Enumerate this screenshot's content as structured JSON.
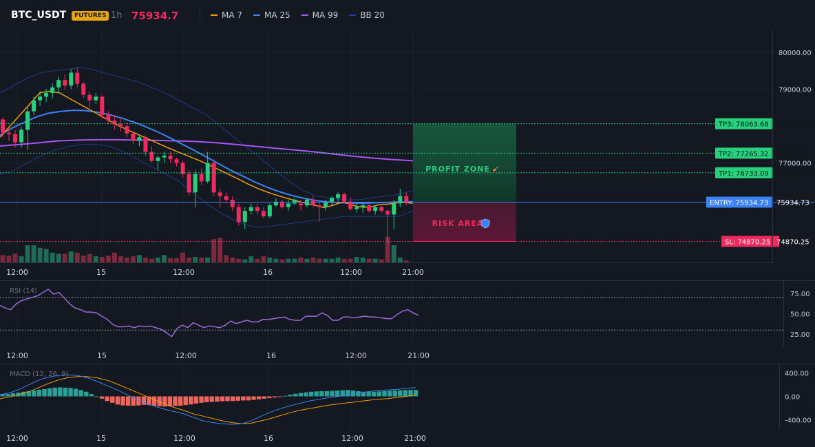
{
  "header": {
    "symbol": "BTC_USDT",
    "badge": "FUTURES",
    "interval": "1h",
    "price": "75934.7",
    "indicators": [
      {
        "label": "MA 7",
        "color": "#f59e0b"
      },
      {
        "label": "MA 25",
        "color": "#3b82f6"
      },
      {
        "label": "MA 99",
        "color": "#a855f7"
      },
      {
        "label": "BB 20",
        "color": "#1e40af"
      }
    ]
  },
  "colors": {
    "up": "#26d07c",
    "down": "#f0295e",
    "background": "#141821"
  },
  "chart_data": [
    {
      "type": "candlestick",
      "title": "BTC_USDT",
      "x_tick_labels": [
        "12:00",
        "15",
        "12:00",
        "16",
        "12:00",
        "21:00"
      ],
      "y_ticks": [
        80000,
        79000,
        77000
      ],
      "y_tick_labels": [
        "80000.00",
        "79000.00",
        "77000.00"
      ],
      "ylim": [
        74300,
        80600
      ],
      "candles_ohlc": [
        [
          78180,
          78240,
          77700,
          77820
        ],
        [
          77820,
          77950,
          77600,
          77780
        ],
        [
          77780,
          77900,
          77420,
          77560
        ],
        [
          77560,
          77980,
          77420,
          77900
        ],
        [
          77900,
          78500,
          77350,
          78400
        ],
        [
          78400,
          78800,
          78300,
          78700
        ],
        [
          78700,
          78950,
          78550,
          78800
        ],
        [
          78800,
          79000,
          78650,
          78900
        ],
        [
          78900,
          79150,
          78750,
          79050
        ],
        [
          79050,
          79350,
          78900,
          79250
        ],
        [
          79250,
          79400,
          79000,
          79100
        ],
        [
          79100,
          79550,
          79000,
          79450
        ],
        [
          79450,
          79600,
          79050,
          79150
        ],
        [
          79150,
          79200,
          78750,
          78850
        ],
        [
          78850,
          78950,
          78500,
          78700
        ],
        [
          78700,
          78900,
          78600,
          78800
        ],
        [
          78800,
          78850,
          78200,
          78300
        ],
        [
          78300,
          78400,
          78050,
          78150
        ],
        [
          78150,
          78300,
          77900,
          78050
        ],
        [
          78050,
          78200,
          77850,
          78000
        ],
        [
          78000,
          78100,
          77700,
          77800
        ],
        [
          77800,
          77850,
          77500,
          77600
        ],
        [
          77600,
          77750,
          77450,
          77700
        ],
        [
          77700,
          77750,
          77200,
          77300
        ],
        [
          77300,
          77450,
          77000,
          77050
        ],
        [
          77050,
          77200,
          76800,
          77150
        ],
        [
          77150,
          77300,
          77000,
          77200
        ],
        [
          77200,
          77300,
          77000,
          77100
        ],
        [
          77100,
          77150,
          76900,
          77000
        ],
        [
          77000,
          77050,
          76600,
          76700
        ],
        [
          76700,
          76800,
          76100,
          76200
        ],
        [
          76200,
          76800,
          75800,
          76700
        ],
        [
          76700,
          76850,
          76400,
          76500
        ],
        [
          76500,
          77300,
          76450,
          77000
        ],
        [
          77000,
          77100,
          76100,
          76200
        ],
        [
          76200,
          76300,
          75800,
          76100
        ],
        [
          76100,
          76200,
          75900,
          76000
        ],
        [
          76000,
          76100,
          75700,
          75800
        ],
        [
          75800,
          75900,
          75300,
          75400
        ],
        [
          75400,
          75800,
          75200,
          75700
        ],
        [
          75700,
          75900,
          75600,
          75800
        ],
        [
          75800,
          75900,
          75600,
          75700
        ],
        [
          75700,
          75800,
          75500,
          75550
        ],
        [
          75550,
          75900,
          75500,
          75850
        ],
        [
          75850,
          76050,
          75800,
          75950
        ],
        [
          75950,
          76000,
          75750,
          75800
        ],
        [
          75800,
          76000,
          75700,
          75900
        ],
        [
          75900,
          76050,
          75850,
          76000
        ],
        [
          75900,
          76000,
          75700,
          75850
        ],
        [
          75850,
          76050,
          75800,
          76000
        ],
        [
          76000,
          76100,
          75800,
          75850
        ],
        [
          75850,
          75950,
          75400,
          75800
        ],
        [
          75800,
          76000,
          75700,
          75950
        ],
        [
          75950,
          76100,
          75850,
          76050
        ],
        [
          76050,
          76200,
          75950,
          76150
        ],
        [
          76150,
          76200,
          75900,
          75950
        ],
        [
          75950,
          76050,
          75700,
          75750
        ],
        [
          75750,
          75900,
          75650,
          75800
        ],
        [
          75800,
          75900,
          75650,
          75850
        ],
        [
          75850,
          75950,
          75650,
          75700
        ],
        [
          75700,
          75850,
          75600,
          75800
        ],
        [
          75800,
          75900,
          75650,
          75700
        ],
        [
          75700,
          75750,
          74800,
          75600
        ],
        [
          75600,
          76000,
          75200,
          75900
        ],
        [
          75900,
          76300,
          75800,
          76100
        ],
        [
          76100,
          76200,
          75850,
          75950
        ]
      ],
      "volumes": [
        12,
        11,
        14,
        10,
        28,
        28,
        24,
        22,
        16,
        14,
        14,
        18,
        16,
        11,
        14,
        10,
        9,
        11,
        16,
        10,
        8,
        10,
        12,
        8,
        6,
        8,
        12,
        7,
        7,
        16,
        8,
        9,
        8,
        8,
        38,
        40,
        12,
        8,
        6,
        5,
        10,
        6,
        10,
        8,
        6,
        5,
        6,
        6,
        8,
        6,
        8,
        6,
        6,
        6,
        8,
        6,
        6,
        9,
        8,
        6,
        6,
        5,
        42,
        28,
        8,
        3
      ],
      "ma7": [
        77700,
        78000,
        78300,
        78600,
        78900,
        78950,
        78900,
        78750,
        78600,
        78450,
        78300,
        78150,
        78000,
        77880,
        77760,
        77640,
        77520,
        77400,
        77290,
        77180,
        77070,
        76950,
        76820,
        76690,
        76560,
        76420,
        76300,
        76200,
        76110,
        76030,
        75960,
        75890,
        75830,
        75790,
        75810,
        75850,
        75900,
        75930,
        75900,
        75850,
        75820,
        75800,
        75800,
        75820,
        75860,
        75880,
        75880,
        75900,
        75920,
        75930,
        75920,
        75900
      ],
      "ma7_x_index": [
        0,
        2,
        4,
        6,
        8,
        10,
        12,
        14,
        16,
        18,
        20,
        22,
        24,
        26,
        28,
        30,
        32,
        34,
        36,
        38,
        40,
        42,
        44,
        46,
        48,
        50,
        52,
        54,
        56,
        58,
        60,
        62,
        64,
        65,
        66,
        67,
        68,
        69,
        70,
        71,
        72,
        73,
        74,
        75,
        76,
        77,
        78,
        79,
        80,
        81,
        82,
        83
      ],
      "ma25": [
        77750,
        77950,
        78100,
        78250,
        78350,
        78400,
        78430,
        78420,
        78380,
        78310,
        78220,
        78110,
        77980,
        77840,
        77680,
        77510,
        77340,
        77160,
        76980,
        76800,
        76640,
        76480,
        76340,
        76220,
        76120,
        76040,
        75980,
        75940,
        75920,
        75910,
        75910,
        75920,
        75930,
        75940,
        75950
      ],
      "ma99": [
        77460,
        77500,
        77550,
        77600,
        77620,
        77630,
        77630,
        77620,
        77610,
        77600,
        77580,
        77550,
        77500,
        77450,
        77400,
        77350,
        77300,
        77240,
        77180,
        77130,
        77090,
        77060
      ],
      "bb_upper": [
        78900,
        79100,
        79300,
        79450,
        79500,
        79550,
        79600,
        79500,
        79400,
        79300,
        79200,
        79050,
        78900,
        78700,
        78500,
        78300,
        78000,
        77700,
        77400,
        77100,
        76800,
        76500,
        76250,
        76100,
        76050,
        76000,
        76000,
        76050,
        76100,
        76150,
        76250
      ],
      "bb_lower": [
        76700,
        76800,
        77000,
        77200,
        77350,
        77450,
        77500,
        77500,
        77450,
        77300,
        77100,
        76900,
        76700,
        76500,
        76200,
        75900,
        75650,
        75450,
        75300,
        75250,
        75300,
        75350,
        75400,
        75450,
        75500,
        75550,
        75550,
        75550,
        75550,
        75550,
        75700
      ]
    },
    {
      "type": "line",
      "title": "RSI (14)",
      "y_ticks": [
        75,
        50,
        25
      ],
      "y_tick_labels": [
        "75.00",
        "50.00",
        "25.00"
      ],
      "ylim": [
        10,
        90
      ],
      "reference_lines": [
        70,
        30
      ],
      "x_tick_labels": [
        "12:00",
        "15",
        "12:00",
        "16",
        "12:00",
        "21:00"
      ],
      "values": [
        60,
        57,
        55,
        62,
        66,
        68,
        70,
        72,
        76,
        80,
        74,
        76,
        69,
        62,
        57,
        55,
        52,
        52,
        51,
        47,
        43,
        37,
        34,
        34,
        35,
        33,
        35,
        34,
        35,
        33,
        31,
        27,
        22,
        32,
        36,
        33,
        39,
        36,
        33,
        35,
        34,
        33,
        36,
        41,
        38,
        40,
        42,
        40,
        40,
        43,
        43,
        44,
        45,
        46,
        43,
        42,
        42,
        47,
        47,
        47,
        51,
        48,
        42,
        42,
        46,
        46,
        45,
        46,
        47,
        46,
        46,
        45,
        44,
        44,
        49,
        53,
        55,
        51,
        48
      ]
    },
    {
      "type": "bar",
      "title": "MACD (12, 26, 9)",
      "y_ticks": [
        400,
        0,
        -400
      ],
      "y_tick_labels": [
        "400.00",
        "0.00",
        "-400.00"
      ],
      "ylim": [
        -550,
        550
      ],
      "x_tick_labels": [
        "12:00",
        "15",
        "12:00",
        "16",
        "12:00",
        "21:00"
      ],
      "histogram": [
        40,
        40,
        55,
        65,
        80,
        90,
        100,
        115,
        125,
        140,
        150,
        155,
        150,
        145,
        130,
        110,
        80,
        40,
        0,
        -40,
        -80,
        -110,
        -140,
        -155,
        -160,
        -160,
        -155,
        -145,
        -150,
        -160,
        -170,
        -175,
        -170,
        -165,
        -160,
        -150,
        -140,
        -125,
        -110,
        -100,
        -95,
        -90,
        -85,
        -80,
        -80,
        -75,
        -70,
        -70,
        -60,
        -50,
        -40,
        -30,
        -20,
        -10,
        10,
        30,
        45,
        60,
        70,
        80,
        85,
        90,
        90,
        95,
        100,
        105,
        110,
        100,
        90,
        80,
        80,
        80,
        85,
        90,
        95,
        100,
        105,
        110,
        110,
        110
      ],
      "macd": [
        30,
        60,
        120,
        200,
        280,
        330,
        360,
        370,
        360,
        320,
        260,
        190,
        120,
        40,
        -40,
        -110,
        -170,
        -220,
        -260,
        -300,
        -360,
        -420,
        -450,
        -470,
        -480,
        -470,
        -420,
        -340,
        -270,
        -210,
        -160,
        -120,
        -80,
        -50,
        -20,
        0,
        20,
        50,
        80,
        100,
        110,
        120,
        140,
        150
      ],
      "signal": [
        -40,
        -10,
        30,
        80,
        150,
        220,
        280,
        320,
        340,
        340,
        320,
        280,
        220,
        150,
        80,
        10,
        -60,
        -130,
        -190,
        -240,
        -300,
        -340,
        -380,
        -420,
        -450,
        -470,
        -460,
        -420,
        -380,
        -330,
        -280,
        -240,
        -210,
        -180,
        -150,
        -130,
        -110,
        -90,
        -70,
        -50,
        -40,
        -20,
        0,
        20
      ]
    }
  ],
  "trade_zones": {
    "profit_label": "PROFIT ZONE",
    "profit_icon": "rocket-icon",
    "risk_label": "RISK AREA",
    "risk_icon": "shield-icon"
  },
  "price_levels": [
    {
      "key": "tp3",
      "value": 78063.68,
      "label": "TP3: 78063.68",
      "price_text": "78063.68",
      "color": "#26d07c",
      "style": "dotted"
    },
    {
      "key": "tp2",
      "value": 77265.32,
      "label": "TP2: 77265.32",
      "price_text": "77265.32",
      "color": "#26d07c",
      "style": "dotted"
    },
    {
      "key": "tp1",
      "value": 76733.09,
      "label": "TP1: 76733.09",
      "price_text": "76733.09",
      "color": "#26d07c",
      "style": "dotted"
    },
    {
      "key": "entry",
      "value": 75934.73,
      "label": "ENTRY: 75934.73",
      "price_text": "75934.73",
      "color": "#3b82f6",
      "style": "solid"
    },
    {
      "key": "sl",
      "value": 74870.25,
      "label": "SL: 74870.25",
      "price_text": "74870.25",
      "color": "#f0295e",
      "style": "dotted"
    }
  ]
}
